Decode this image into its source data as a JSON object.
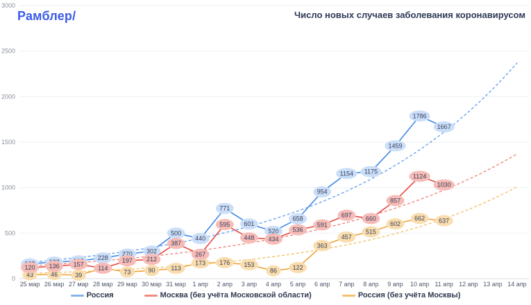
{
  "brand": {
    "logo_text": "Рамблер/"
  },
  "header": {
    "title": "Число новых случаев заболевания коронавирусом"
  },
  "chart_data": {
    "type": "line",
    "title": "Число новых случаев заболевания коронавирусом",
    "xlabel": "",
    "ylabel": "",
    "ylim": [
      0,
      3000
    ],
    "y_ticks": [
      0,
      500,
      1000,
      1500,
      2000,
      2500,
      3000
    ],
    "grid": "horizontal",
    "legend_position": "bottom",
    "x_tick_labels": [
      "25 мар",
      "26 мар",
      "27 мар",
      "28 мар",
      "29 мар",
      "30 мар",
      "31 мар",
      "1 апр",
      "2 апр",
      "3 апр",
      "4 апр",
      "5 апр",
      "6 апр",
      "7 апр",
      "8 апр",
      "9 апр",
      "10 апр",
      "11 апр",
      "12 апр",
      "13 апр",
      "14 апр"
    ],
    "note": "solid series end 11 апр; dashed exponential trend lines extend to 14 апр",
    "series": [
      {
        "name": "Россия",
        "color": "#3f88e8",
        "dash_color": "#5f9cf0",
        "bubble_color": "#cbdef8",
        "legend_marker_color": "#85b4ea",
        "values": [
          163,
          182,
          196,
          228,
          270,
          302,
          500,
          440,
          771,
          601,
          520,
          658,
          954,
          1154,
          1175,
          1459,
          1786,
          1667
        ],
        "trend": {
          "start": 180,
          "end": 2370
        }
      },
      {
        "name": "Москва (без учёта Московской области)",
        "color": "#e8473f",
        "dash_color": "#ef7f72",
        "bubble_color": "#f6bcb7",
        "legend_marker_color": "#f08a7e",
        "values": [
          120,
          136,
          157,
          114,
          197,
          212,
          387,
          267,
          595,
          448,
          434,
          536,
          591,
          697,
          660,
          857,
          1124,
          1030
        ],
        "trend": {
          "start": 140,
          "end": 1370
        }
      },
      {
        "name": "Россия (без учёта Москвы)",
        "color": "#f0a236",
        "dash_color": "#f3c05e",
        "bubble_color": "#f9ddae",
        "legend_marker_color": "#f5c06a",
        "values": [
          43,
          46,
          39,
          114,
          73,
          90,
          113,
          173,
          176,
          153,
          86,
          122,
          363,
          457,
          515,
          602,
          662,
          637
        ],
        "trend": {
          "start": 58,
          "end": 1010
        }
      }
    ]
  }
}
